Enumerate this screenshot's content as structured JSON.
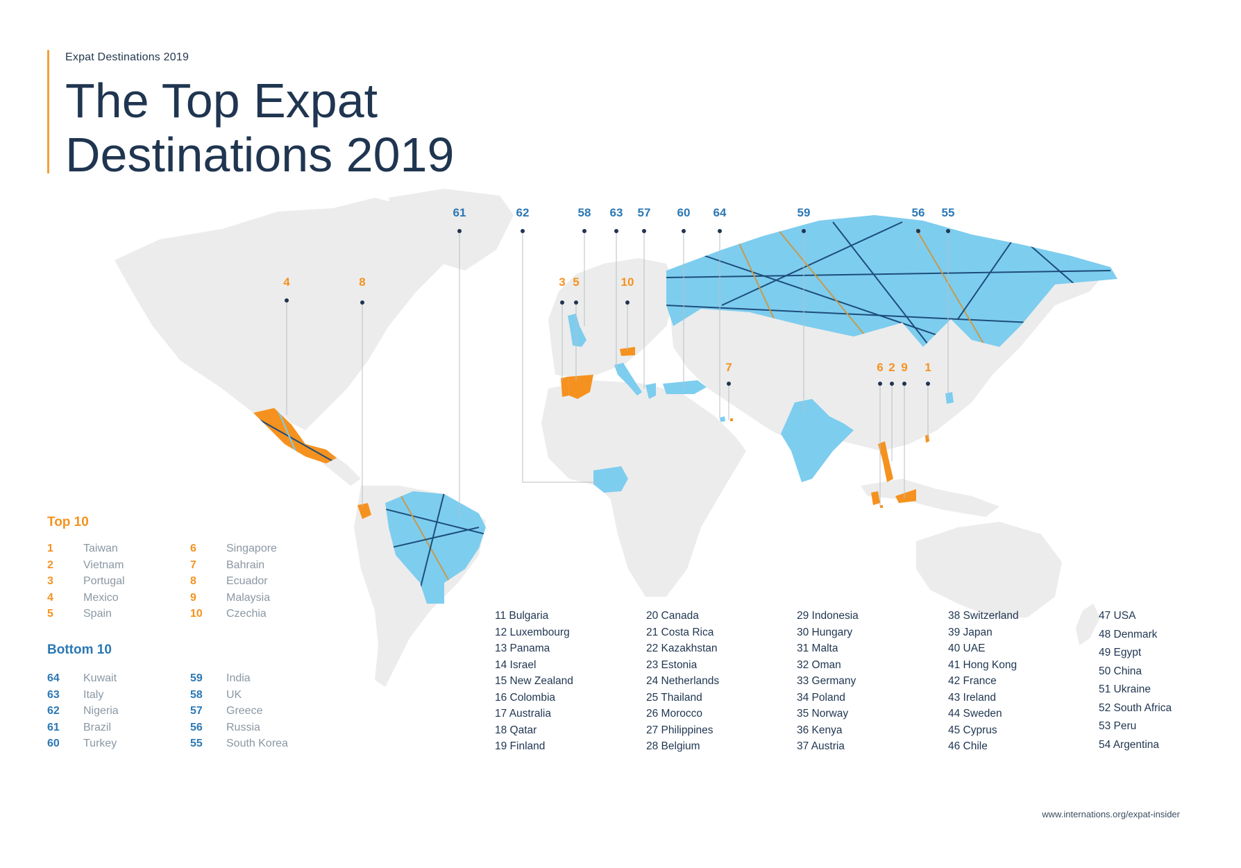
{
  "header": {
    "kicker": "Expat Destinations 2019",
    "title_line1": "The Top Expat",
    "title_line2": "Destinations 2019"
  },
  "colors": {
    "top": "#f5921f",
    "bottom": "#2b78b5",
    "land": "#ececec",
    "highlight": "#7dcdef",
    "line": "#1d4d7a",
    "accent": "#f5a13b"
  },
  "top10": {
    "heading": "Top 10",
    "items": [
      {
        "rank": "1",
        "name": "Taiwan"
      },
      {
        "rank": "2",
        "name": "Vietnam"
      },
      {
        "rank": "3",
        "name": "Portugal"
      },
      {
        "rank": "4",
        "name": "Mexico"
      },
      {
        "rank": "5",
        "name": "Spain"
      },
      {
        "rank": "6",
        "name": "Singapore"
      },
      {
        "rank": "7",
        "name": "Bahrain"
      },
      {
        "rank": "8",
        "name": "Ecuador"
      },
      {
        "rank": "9",
        "name": "Malaysia"
      },
      {
        "rank": "10",
        "name": "Czechia"
      }
    ]
  },
  "bottom10": {
    "heading": "Bottom 10",
    "items": [
      {
        "rank": "64",
        "name": "Kuwait"
      },
      {
        "rank": "63",
        "name": "Italy"
      },
      {
        "rank": "62",
        "name": "Nigeria"
      },
      {
        "rank": "61",
        "name": "Brazil"
      },
      {
        "rank": "60",
        "name": "Turkey"
      },
      {
        "rank": "59",
        "name": "India"
      },
      {
        "rank": "58",
        "name": "UK"
      },
      {
        "rank": "57",
        "name": "Greece"
      },
      {
        "rank": "56",
        "name": "Russia"
      },
      {
        "rank": "55",
        "name": "South Korea"
      }
    ]
  },
  "middle_columns": [
    [
      "11 Bulgaria",
      "12 Luxembourg",
      "13 Panama",
      "14 Israel",
      "15 New Zealand",
      "16 Colombia",
      "17 Australia",
      "18 Qatar",
      "19 Finland"
    ],
    [
      "20 Canada",
      "21 Costa Rica",
      "22 Kazakhstan",
      "23 Estonia",
      "24 Netherlands",
      "25 Thailand",
      "26 Morocco",
      "27 Philippines",
      "28 Belgium"
    ],
    [
      "29 Indonesia",
      "30 Hungary",
      "31 Malta",
      "32 Oman",
      "33 Germany",
      "34 Poland",
      "35 Norway",
      "36 Kenya",
      "37 Austria"
    ],
    [
      "38 Switzerland",
      "39 Japan",
      "40 UAE",
      "41 Hong Kong",
      "42 France",
      "43 Ireland",
      "44 Sweden",
      "45 Cyprus",
      "46 Chile"
    ],
    [
      "47 USA",
      "48 Denmark",
      "49 Egypt",
      "50 China",
      "51 Ukraine",
      "52 South Africa",
      "53 Peru",
      "54 Argentina"
    ]
  ],
  "map_markers": [
    {
      "label": "4",
      "group": "top"
    },
    {
      "label": "8",
      "group": "top"
    },
    {
      "label": "3",
      "group": "top"
    },
    {
      "label": "5",
      "group": "top"
    },
    {
      "label": "10",
      "group": "top"
    },
    {
      "label": "7",
      "group": "top"
    },
    {
      "label": "6",
      "group": "top"
    },
    {
      "label": "2",
      "group": "top"
    },
    {
      "label": "9",
      "group": "top"
    },
    {
      "label": "1",
      "group": "top"
    },
    {
      "label": "61",
      "group": "bottom"
    },
    {
      "label": "62",
      "group": "bottom"
    },
    {
      "label": "58",
      "group": "bottom"
    },
    {
      "label": "63",
      "group": "bottom"
    },
    {
      "label": "57",
      "group": "bottom"
    },
    {
      "label": "60",
      "group": "bottom"
    },
    {
      "label": "64",
      "group": "bottom"
    },
    {
      "label": "59",
      "group": "bottom"
    },
    {
      "label": "56",
      "group": "bottom"
    },
    {
      "label": "55",
      "group": "bottom"
    }
  ],
  "footer": {
    "url": "www.internations.org/expat-insider"
  }
}
